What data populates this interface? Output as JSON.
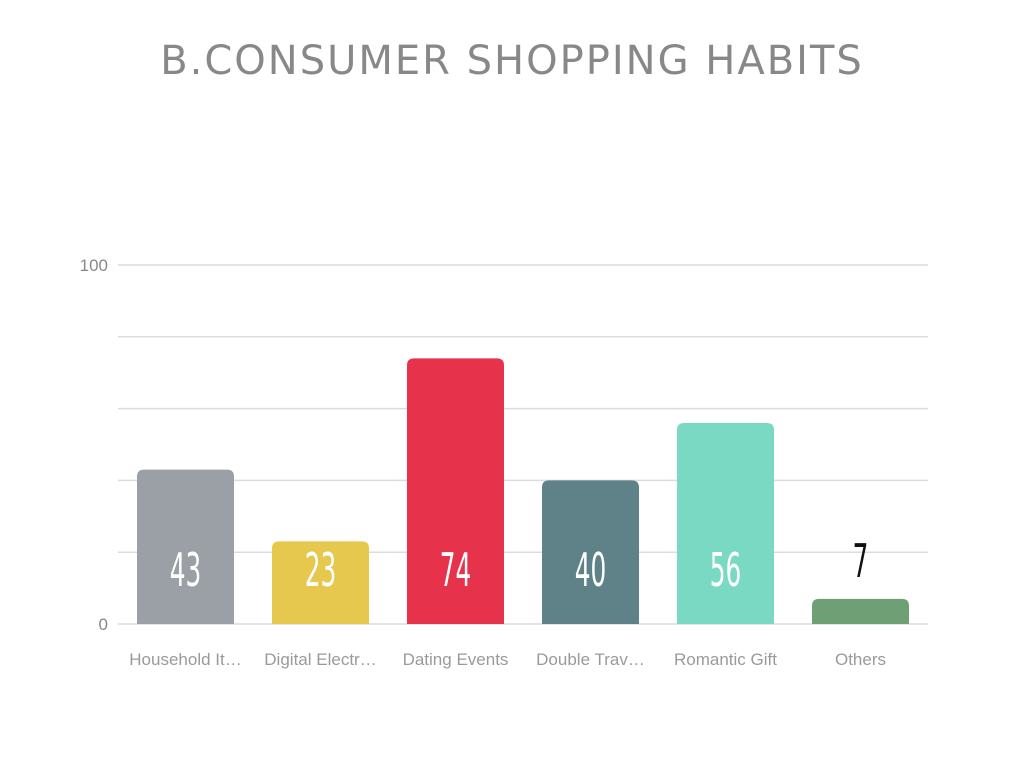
{
  "chart_data": {
    "type": "bar",
    "title": "B.CONSUMER SHOPPING HABITS",
    "categories": [
      "Household It…",
      "Digital Electr…",
      "Dating Events",
      "Double Trav…",
      "Romantic Gift",
      "Others"
    ],
    "values": [
      43,
      23,
      74,
      40,
      56,
      7
    ],
    "colors": [
      "#9aa0a5",
      "#e6c84f",
      "#e6324b",
      "#5e8288",
      "#7ad9c2",
      "#6f9f74"
    ],
    "ylim": [
      0,
      100
    ],
    "yticks": [
      "0",
      "100"
    ],
    "grid": true,
    "xlabel": "",
    "ylabel": ""
  }
}
